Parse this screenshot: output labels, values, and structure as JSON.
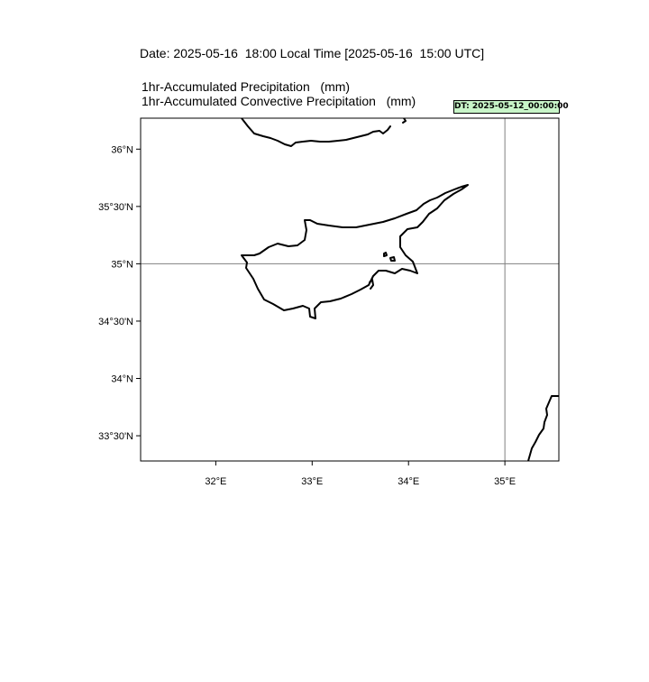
{
  "header": {
    "date_line": "Date: 2025-05-16  18:00 Local Time [2025-05-16  15:00 UTC]",
    "title_line_1": "1hr-Accumulated Precipitation   (mm)",
    "title_line_2": "1hr-Accumulated Convective Precipitation   (mm)",
    "dt_badge": "DT: 2025-05-12_00:00:00",
    "dt_badge_color": "#c8f5c8"
  },
  "map": {
    "region": "Cyprus",
    "lon_range": [
      31.22,
      35.56
    ],
    "lat_range": [
      33.28,
      36.27
    ],
    "lat_tick_values": [
      36.0,
      35.5,
      35.0,
      34.5,
      34.0,
      33.5
    ],
    "lat_tick_labels": [
      "36°N",
      "35°30'N",
      "35°N",
      "34°30'N",
      "34°N",
      "33°30'N"
    ],
    "lon_tick_values": [
      32,
      33,
      34,
      35
    ],
    "lon_tick_labels": [
      "32°E",
      "33°E",
      "34°E",
      "35°E"
    ],
    "gridlines": {
      "lat": 35.0,
      "lon": 35.0
    },
    "coastline_color": "#000000",
    "gridline_color": "#808080"
  }
}
